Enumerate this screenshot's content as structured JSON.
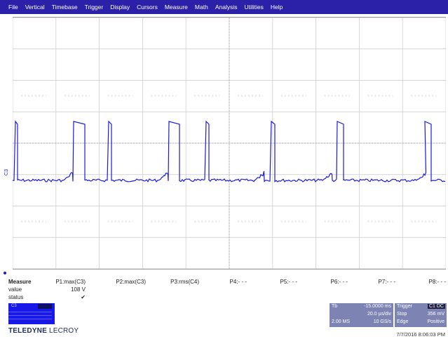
{
  "menu": [
    "File",
    "Vertical",
    "Timebase",
    "Trigger",
    "Display",
    "Cursors",
    "Measure",
    "Math",
    "Analysis",
    "Utilities",
    "Help"
  ],
  "channel_label": "C3",
  "trace_color": "#1a1ae0",
  "measure": {
    "title": "Measure",
    "row_labels": [
      "value",
      "status"
    ],
    "params": [
      {
        "name": "P1:max(C3)",
        "value": "108 V",
        "status": "✔"
      },
      {
        "name": "P2:max(C3)",
        "value": "",
        "status": ""
      },
      {
        "name": "P3:rms(C4)",
        "value": "",
        "status": ""
      },
      {
        "name": "P4:- - -",
        "value": "",
        "status": ""
      },
      {
        "name": "P5:- - -",
        "value": "",
        "status": ""
      },
      {
        "name": "P6:- - -",
        "value": "",
        "status": ""
      },
      {
        "name": "P7:- - -",
        "value": "",
        "status": ""
      },
      {
        "name": "P8:- - -",
        "value": "",
        "status": ""
      }
    ]
  },
  "brand": {
    "bold": "TELEDYNE",
    "light": "LECROY"
  },
  "timebase": {
    "label": "Tb",
    "delay": "-15.0000 ms",
    "div": "20.0 µs/div",
    "samples": "2.00 MS",
    "rate": "10 GS/s"
  },
  "trigger": {
    "label": "Trigger",
    "channel": "C1 DC",
    "mode": "Stop",
    "level": "356 mV",
    "type": "Edge",
    "slope": "Positive"
  },
  "timestamp": "7/7/2016 8:06:03 PM"
}
